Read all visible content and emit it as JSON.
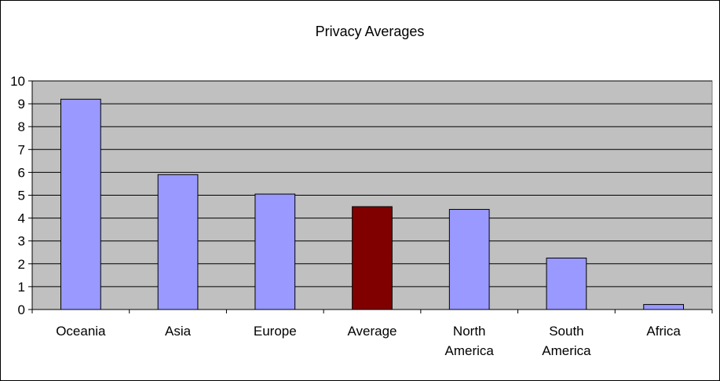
{
  "chart_data": {
    "type": "bar",
    "title": "Privacy Averages",
    "categories": [
      "Oceania",
      "Asia",
      "Europe",
      "Average",
      "North America",
      "South America",
      "Africa"
    ],
    "category_label_lines": [
      [
        "Oceania"
      ],
      [
        "Asia"
      ],
      [
        "Europe"
      ],
      [
        "Average"
      ],
      [
        "North",
        "America"
      ],
      [
        "South",
        "America"
      ],
      [
        "Africa"
      ]
    ],
    "values": [
      9.2,
      5.9,
      5.05,
      4.5,
      4.38,
      2.25,
      0.22
    ],
    "bar_colors": [
      "#9999ff",
      "#9999ff",
      "#9999ff",
      "#800000",
      "#9999ff",
      "#9999ff",
      "#9999ff"
    ],
    "yticks": [
      "0",
      "1",
      "2",
      "3",
      "4",
      "5",
      "6",
      "7",
      "8",
      "9",
      "10"
    ],
    "ylim": [
      0,
      10
    ],
    "xlabel": "",
    "ylabel": "",
    "grid": true,
    "legend": "none",
    "plot_background": "#c0c0c0"
  }
}
